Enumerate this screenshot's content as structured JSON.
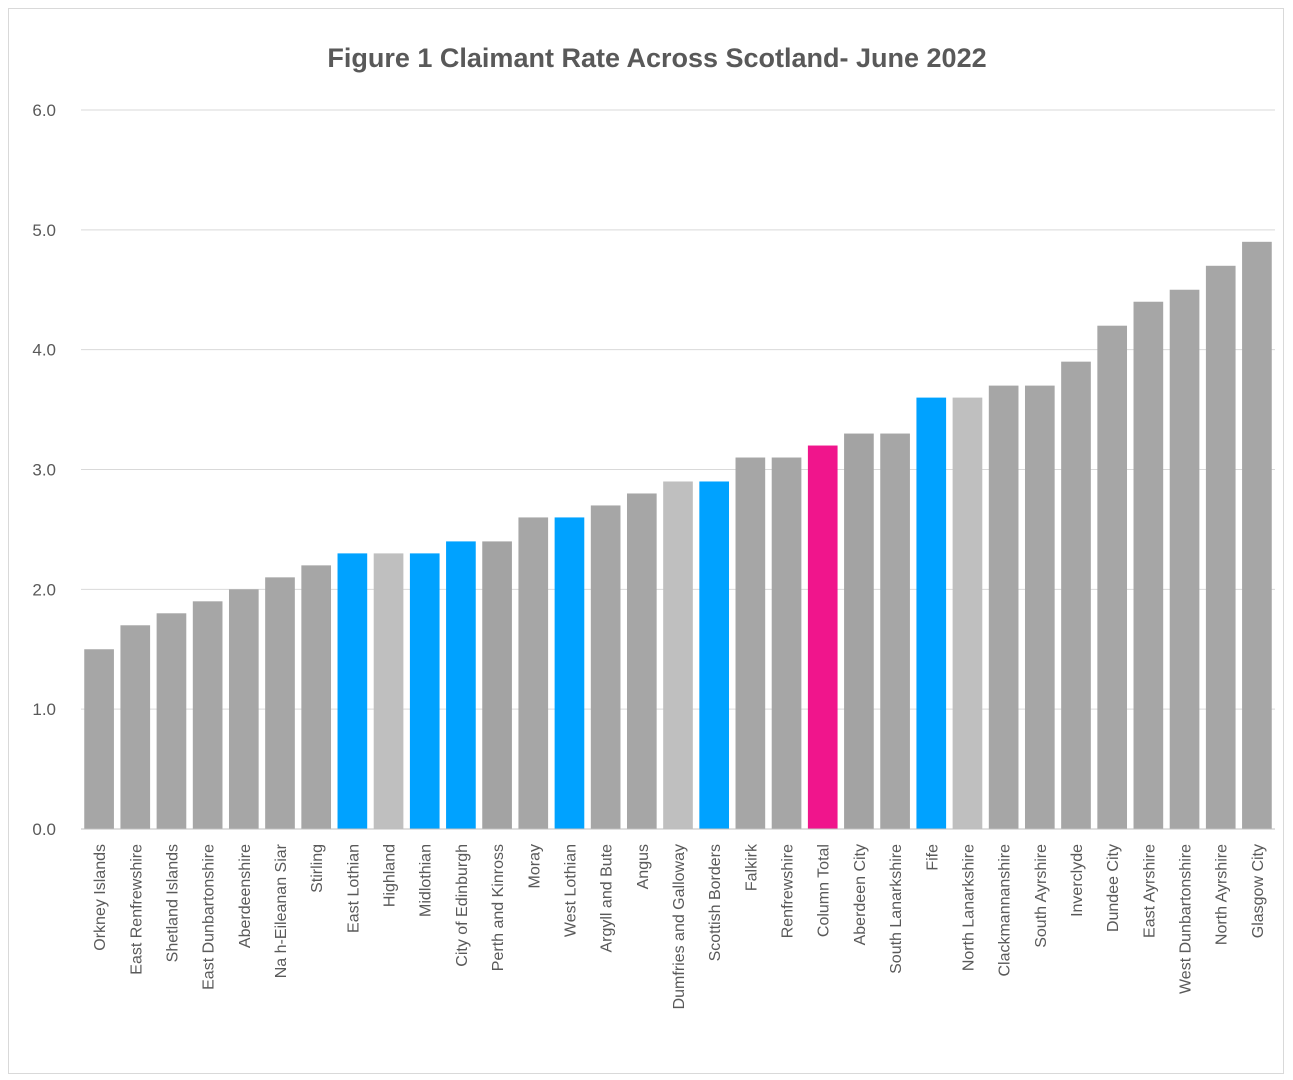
{
  "chart_data": {
    "type": "bar",
    "title": "Figure 1 Claimant Rate Across Scotland- June 2022",
    "xlabel": "",
    "ylabel": "",
    "ylim": [
      0,
      6
    ],
    "yticks": [
      "0.0",
      "1.0",
      "2.0",
      "3.0",
      "4.0",
      "5.0",
      "6.0"
    ],
    "grid": true,
    "legend": "none",
    "categories": [
      "Orkney Islands",
      "East Renfrewshire",
      "Shetland Islands",
      "East Dunbartonshire",
      "Aberdeenshire",
      "Na h-Eileanan Siar",
      "Stirling",
      "East Lothian",
      "Highland",
      "Midlothian",
      "City of Edinburgh",
      "Perth and Kinross",
      "Moray",
      "West Lothian",
      "Argyll and Bute",
      "Angus",
      "Dumfries and Galloway",
      "Scottish Borders",
      "Falkirk",
      "Renfrewshire",
      "Column Total",
      "Aberdeen City",
      "South Lanarkshire",
      "Fife",
      "North Lanarkshire",
      "Clackmannanshire",
      "South Ayrshire",
      "Inverclyde",
      "Dundee City",
      "East Ayrshire",
      "West Dunbartonshire",
      "North Ayrshire",
      "Glasgow City"
    ],
    "values": [
      1.5,
      1.7,
      1.8,
      1.9,
      2.0,
      2.1,
      2.2,
      2.3,
      2.3,
      2.3,
      2.4,
      2.4,
      2.6,
      2.6,
      2.7,
      2.8,
      2.9,
      2.9,
      3.1,
      3.1,
      3.2,
      3.3,
      3.3,
      3.6,
      3.6,
      3.7,
      3.7,
      3.9,
      4.2,
      4.4,
      4.5,
      4.7,
      4.9
    ],
    "bar_colors": [
      "#a6a6a6",
      "#a6a6a6",
      "#a6a6a6",
      "#a6a6a6",
      "#a6a6a6",
      "#a6a6a6",
      "#a6a6a6",
      "#00a2ff",
      "#bfbfbf",
      "#00a2ff",
      "#00a2ff",
      "#a3a3a3",
      "#a6a6a6",
      "#00a2ff",
      "#a6a6a6",
      "#a6a6a6",
      "#bfbfbf",
      "#00a2ff",
      "#a6a6a6",
      "#a6a6a6",
      "#f0158c",
      "#a3a3a3",
      "#a6a6a6",
      "#00a2ff",
      "#bfbfbf",
      "#a6a6a6",
      "#a6a6a6",
      "#a6a6a6",
      "#a6a6a6",
      "#a6a6a6",
      "#a6a6a6",
      "#a6a6a6",
      "#a6a6a6"
    ],
    "colors": {
      "grid": "#d9d9d9",
      "axis": "#bfbfbf",
      "text": "#595959"
    }
  }
}
